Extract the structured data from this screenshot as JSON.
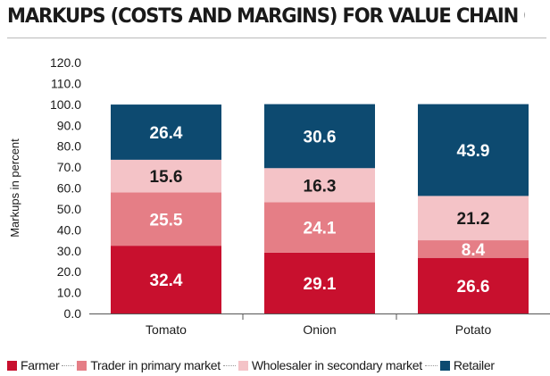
{
  "chart_data": {
    "type": "bar",
    "stacked": true,
    "title": "MARKUPS (COSTS AND MARGINS) FOR VALUE CHAIN OF TOP",
    "xlabel": "",
    "ylabel": "Markups in percent",
    "categories": [
      "Tomato",
      "Onion",
      "Potato"
    ],
    "ylim": [
      0,
      120
    ],
    "yticks": [
      "0.0",
      "10.0",
      "20.0",
      "30.0",
      "40.0",
      "50.0",
      "60.0",
      "70.0",
      "80.0",
      "90.0",
      "100.0",
      "110.0",
      "120.0"
    ],
    "grid": false,
    "legend_position": "bottom",
    "series": [
      {
        "name": "Farmer",
        "values": [
          32.4,
          29.1,
          26.6
        ],
        "labels": [
          "32.4",
          "29.1",
          "26.6"
        ],
        "color": "#c8102e",
        "label_color": "#ffffff"
      },
      {
        "name": "Trader in primary market",
        "values": [
          25.5,
          24.1,
          8.4
        ],
        "labels": [
          "25.5",
          "24.1",
          "8.4"
        ],
        "color": "#e57e86",
        "label_color": "#ffffff"
      },
      {
        "name": "Wholesaler in secondary market",
        "values": [
          15.6,
          16.3,
          21.2
        ],
        "labels": [
          "15.6",
          "16.3",
          "21.2"
        ],
        "color": "#f4c3c7",
        "label_color": "#1a1a1a"
      },
      {
        "name": "Retailer",
        "values": [
          26.4,
          30.6,
          43.9
        ],
        "labels": [
          "26.4",
          "30.6",
          "43.9"
        ],
        "color": "#0d4a70",
        "label_color": "#ffffff"
      }
    ]
  }
}
